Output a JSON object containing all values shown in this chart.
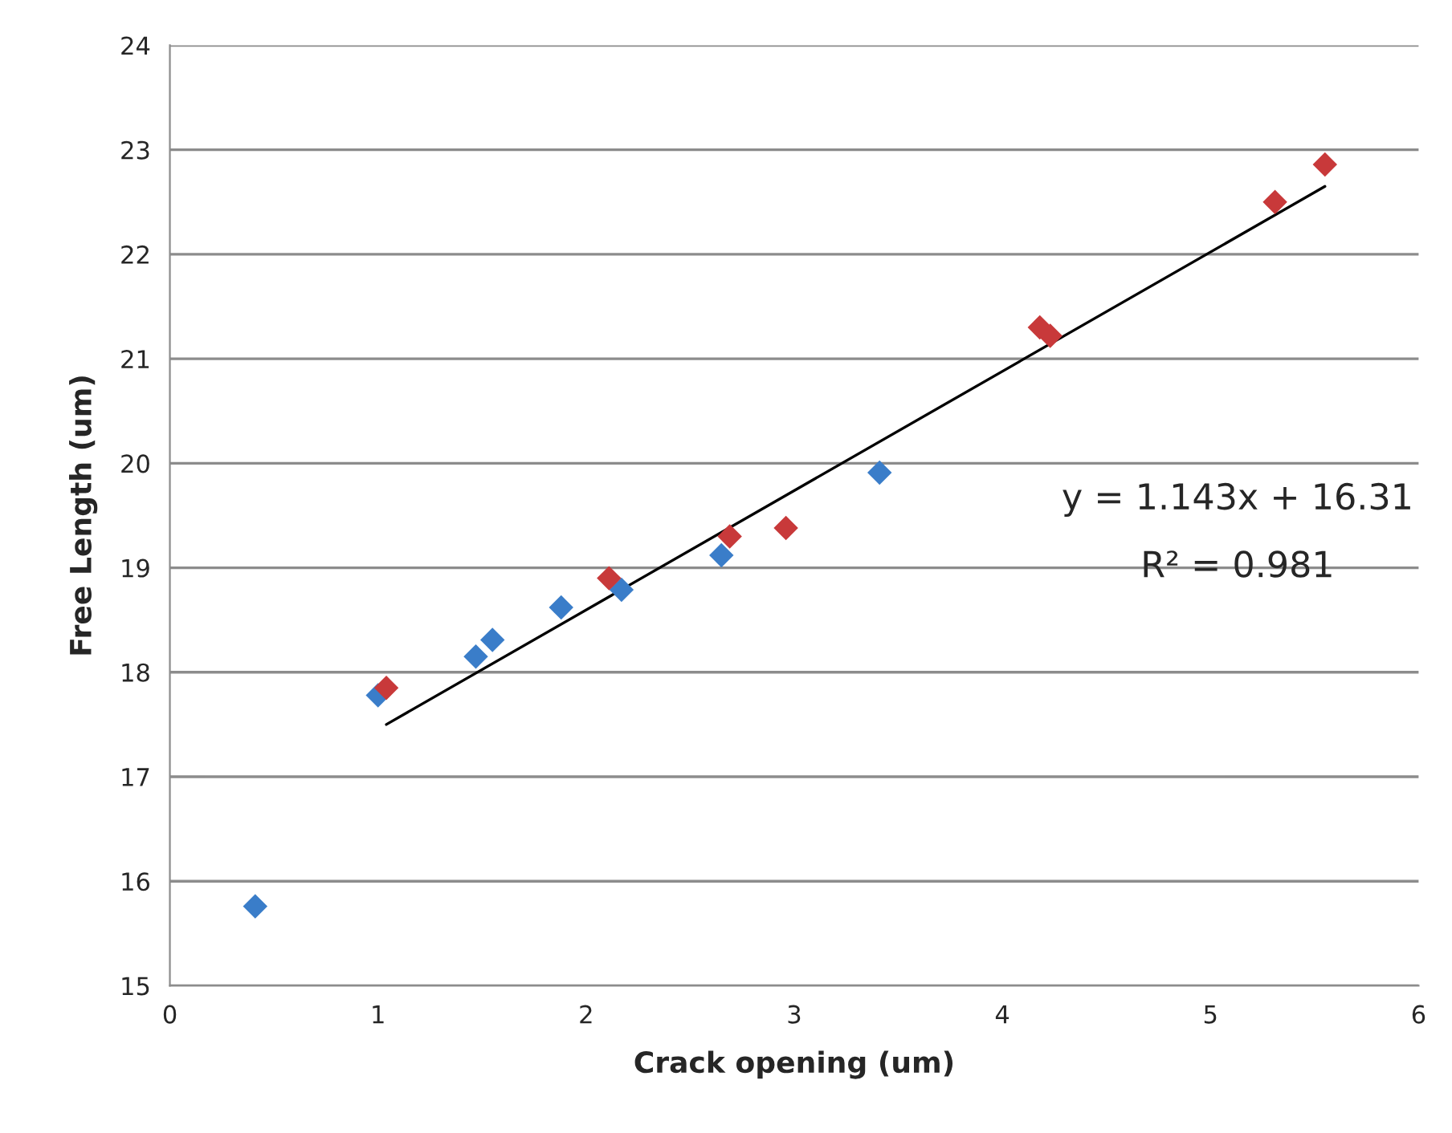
{
  "chart_data": {
    "type": "scatter",
    "xlabel": "Crack opening (um)",
    "ylabel": "Free Length (um)",
    "marker": "diamond",
    "grid": "y",
    "legend": false,
    "xlim": [
      0,
      6
    ],
    "xticks": [
      0,
      1,
      2,
      3,
      4,
      5,
      6
    ],
    "ylim": [
      15,
      24
    ],
    "yticks": [
      15,
      16,
      17,
      18,
      19,
      20,
      21,
      22,
      23,
      24
    ],
    "annotations": [
      "y = 1.143x + 16.31",
      "R² = 0.981"
    ],
    "series": [
      {
        "color": "#3a7dc9",
        "x": [
          0.41,
          1.0,
          1.47,
          1.55,
          1.88,
          2.17,
          2.65,
          3.41
        ],
        "values": [
          15.76,
          17.78,
          18.15,
          18.31,
          18.62,
          18.79,
          19.12,
          19.91
        ]
      },
      {
        "color": "#c8393a",
        "x": [
          1.04,
          2.11,
          2.69,
          2.96,
          4.18,
          4.23,
          5.31,
          5.55
        ],
        "values": [
          17.85,
          18.9,
          19.3,
          19.38,
          21.3,
          21.22,
          22.5,
          22.86
        ]
      },
      {
        "type": "line",
        "color": "#000000",
        "marker": "none",
        "x": [
          1.04,
          5.55
        ],
        "values": [
          17.5,
          22.65
        ]
      }
    ]
  }
}
